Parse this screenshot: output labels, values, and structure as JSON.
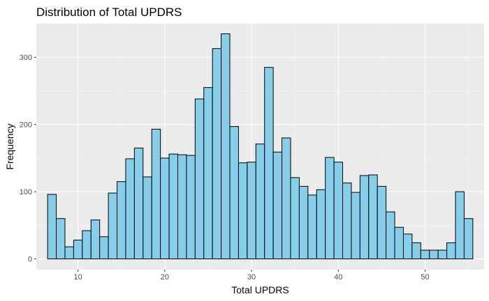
{
  "chart_data": {
    "type": "bar",
    "title": "Distribution of Total UPDRS",
    "xlabel": "Total UPDRS",
    "ylabel": "Frequency",
    "xlim": [
      5.2,
      56.8
    ],
    "ylim": [
      -16,
      350
    ],
    "binwidth": 1,
    "x_ticks": [
      10,
      20,
      30,
      40,
      50
    ],
    "y_ticks": [
      0,
      100,
      200,
      300
    ],
    "bin_centers": [
      7,
      8,
      9,
      10,
      11,
      12,
      13,
      14,
      15,
      16,
      17,
      18,
      19,
      20,
      21,
      22,
      23,
      24,
      25,
      26,
      27,
      28,
      29,
      30,
      31,
      32,
      33,
      34,
      35,
      36,
      37,
      38,
      39,
      40,
      41,
      42,
      43,
      44,
      45,
      46,
      47,
      48,
      49,
      50,
      51,
      52,
      53,
      54,
      55
    ],
    "values": [
      96,
      60,
      18,
      28,
      42,
      58,
      33,
      98,
      115,
      149,
      165,
      122,
      193,
      150,
      156,
      155,
      154,
      238,
      255,
      313,
      335,
      197,
      143,
      144,
      171,
      285,
      159,
      180,
      121,
      108,
      95,
      103,
      151,
      144,
      113,
      99,
      124,
      125,
      108,
      70,
      47,
      37,
      24,
      13,
      13,
      13,
      24,
      100,
      60
    ],
    "grid": true,
    "legend": "none",
    "colors": {
      "bar_fill": "#87ceeb",
      "bar_stroke": "#000000",
      "panel_bg": "#ebebeb",
      "grid_major": "#ffffff",
      "tick_text": "#4d4d4d"
    }
  }
}
